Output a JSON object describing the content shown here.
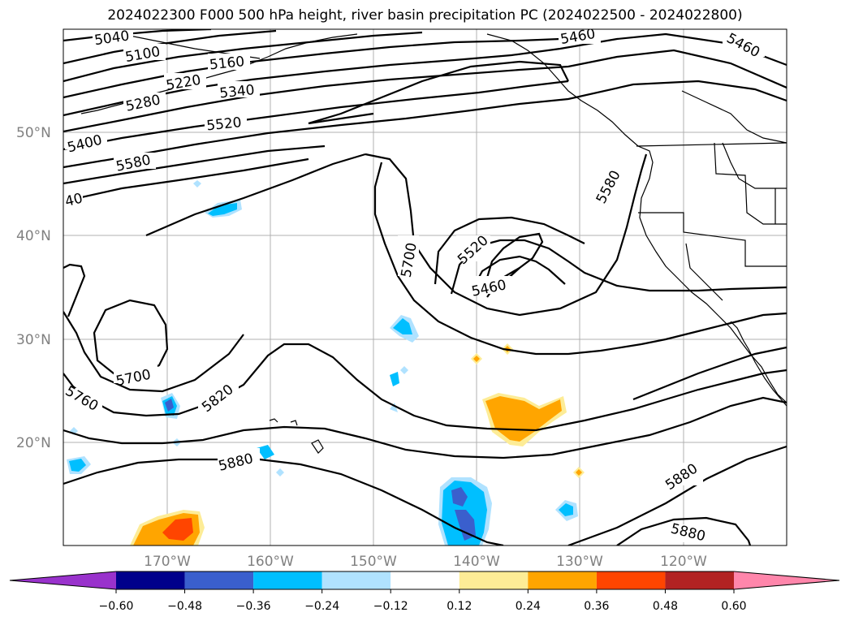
{
  "title": "2024022300 F000 500 hPa height, river basin precipitation PC (2024022500 - 2024022800)",
  "lat_labels": [
    "50°N",
    "40°N",
    "30°N",
    "20°N"
  ],
  "lon_labels": [
    "170°W",
    "160°W",
    "150°W",
    "140°W",
    "130°W",
    "120°W"
  ],
  "contour_labels": [
    "5040",
    "5100",
    "5160",
    "5220",
    "5280",
    "5340",
    "5400",
    "5520",
    "5580",
    "5460",
    "5460",
    "5580",
    "5700",
    "5520",
    "5460",
    "5700",
    "5760",
    "5820",
    "5880",
    "5880",
    "5880",
    "40"
  ],
  "colorbar": {
    "ticks": [
      "−0.60",
      "−0.48",
      "−0.36",
      "−0.24",
      "−0.12",
      "0.12",
      "0.24",
      "0.36",
      "0.48",
      "0.60"
    ],
    "colors": [
      "#9932cc",
      "#00008b",
      "#3a5fcd",
      "#00bfff",
      "#b0e2ff",
      "#ffffff",
      "#fdec96",
      "#ffa500",
      "#ff4500",
      "#b22222",
      "#ff86ab"
    ]
  }
}
